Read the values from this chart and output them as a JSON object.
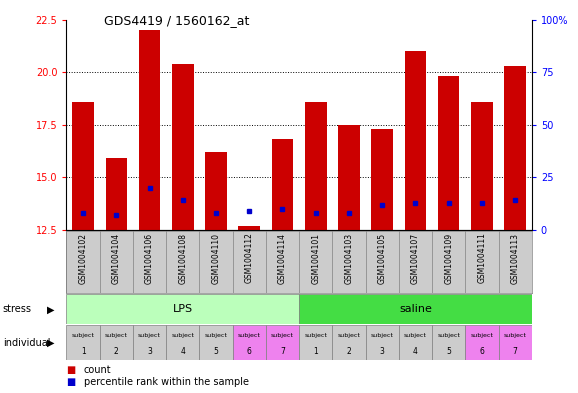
{
  "title": "GDS4419 / 1560162_at",
  "samples": [
    "GSM1004102",
    "GSM1004104",
    "GSM1004106",
    "GSM1004108",
    "GSM1004110",
    "GSM1004112",
    "GSM1004114",
    "GSM1004101",
    "GSM1004103",
    "GSM1004105",
    "GSM1004107",
    "GSM1004109",
    "GSM1004111",
    "GSM1004113"
  ],
  "count_values": [
    18.6,
    15.9,
    22.0,
    20.4,
    16.2,
    12.7,
    16.8,
    18.6,
    17.5,
    17.3,
    21.0,
    19.8,
    18.6,
    20.3
  ],
  "blue_dot_values": [
    13.3,
    13.2,
    14.5,
    13.9,
    13.3,
    13.4,
    13.5,
    13.3,
    13.3,
    13.7,
    13.8,
    13.8,
    13.8,
    13.9
  ],
  "ymin": 12.5,
  "ymax": 22.5,
  "yticks_left": [
    12.5,
    15.0,
    17.5,
    20.0,
    22.5
  ],
  "right_tick_labels": [
    "0",
    "25",
    "50",
    "75",
    "100%"
  ],
  "bar_color": "#CC0000",
  "dot_color": "#0000CC",
  "lps_color": "#BBFFBB",
  "saline_color": "#44DD44",
  "indiv_gray": "#CCCCCC",
  "indiv_pink": "#EE82EE",
  "indiv_colors": [
    "#CCCCCC",
    "#CCCCCC",
    "#CCCCCC",
    "#CCCCCC",
    "#CCCCCC",
    "#EE82EE",
    "#EE82EE",
    "#CCCCCC",
    "#CCCCCC",
    "#CCCCCC",
    "#CCCCCC",
    "#CCCCCC",
    "#EE82EE",
    "#EE82EE"
  ],
  "indiv_labels_top": [
    "subject",
    "subject",
    "subject",
    "subject",
    "subject",
    "subject",
    "subject",
    "subject",
    "subject",
    "subject",
    "subject",
    "subject",
    "subject",
    "subject"
  ],
  "indiv_labels_bot": [
    "1",
    "2",
    "3",
    "4",
    "5",
    "6",
    "7",
    "1",
    "2",
    "3",
    "4",
    "5",
    "6",
    "7"
  ]
}
